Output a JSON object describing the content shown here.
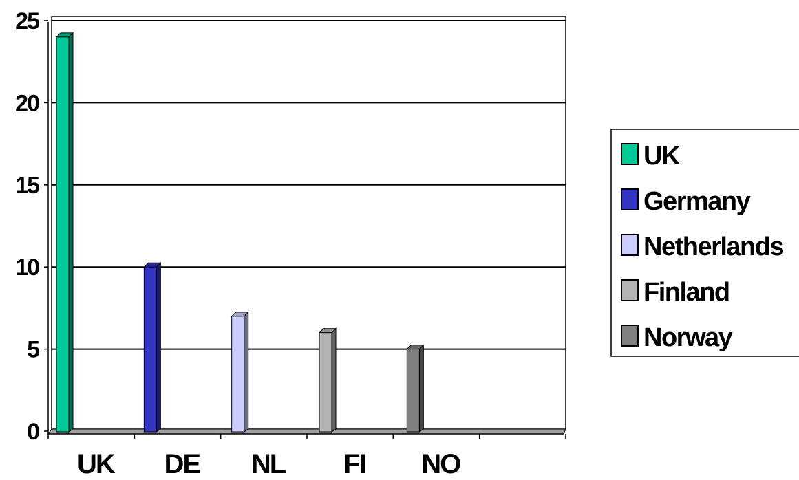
{
  "chart_data": {
    "type": "bar",
    "categories": [
      "UK",
      "DE",
      "NL",
      "FI",
      "NO"
    ],
    "values": [
      24,
      10,
      7,
      6,
      5
    ],
    "series": [
      {
        "name": "UK",
        "color": "#00c896",
        "values": [
          24,
          null,
          null,
          null,
          null
        ]
      },
      {
        "name": "Germany",
        "color": "#3333c4",
        "values": [
          null,
          10,
          null,
          null,
          null
        ]
      },
      {
        "name": "Netherlands",
        "color": "#ccccff",
        "values": [
          null,
          null,
          7,
          null,
          null
        ]
      },
      {
        "name": "Finland",
        "color": "#b3b3b3",
        "values": [
          null,
          null,
          null,
          6,
          null
        ]
      },
      {
        "name": "Norway",
        "color": "#808080",
        "values": [
          null,
          null,
          null,
          null,
          5
        ]
      }
    ],
    "yticks": [
      "0",
      "5",
      "10",
      "15",
      "20",
      "25"
    ],
    "ylim": [
      0,
      25
    ],
    "grid": true,
    "legend_position": "right",
    "title": "",
    "xlabel": "",
    "ylabel": ""
  }
}
